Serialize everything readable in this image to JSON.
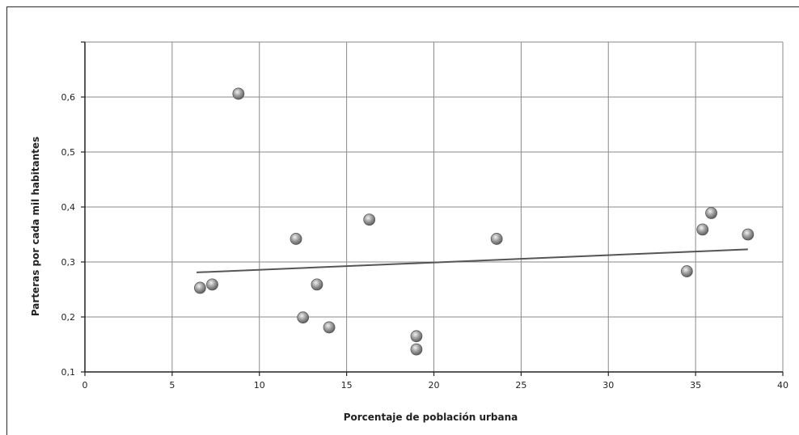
{
  "chart_data": {
    "type": "scatter",
    "xlabel": "Porcentaje de población urbana",
    "ylabel": "Parteras por cada mil habitantes",
    "xlim": [
      0,
      40
    ],
    "ylim": [
      0.1,
      0.7
    ],
    "x_ticks": [
      0,
      5,
      10,
      15,
      20,
      25,
      30,
      35,
      40
    ],
    "x_tick_labels": [
      "0",
      "5",
      "10",
      "15",
      "20",
      "25",
      "30",
      "35",
      "40"
    ],
    "y_tick_labels": [
      {
        "value": 0.1,
        "label": "0,1"
      },
      {
        "value": 0.2,
        "label": "0,2"
      },
      {
        "value": 0.3,
        "label": "0,3"
      },
      {
        "value": 0.4,
        "label": "0,4"
      },
      {
        "value": 0.5,
        "label": "0,5"
      },
      {
        "value": 0.6,
        "label": "0,6"
      }
    ],
    "y_gridlines": [
      0.1,
      0.2,
      0.3,
      0.4,
      0.5,
      0.6,
      0.7
    ],
    "x_gridlines": [
      0,
      5,
      10,
      15,
      20,
      25,
      30,
      35,
      40
    ],
    "grid": true,
    "points": [
      {
        "x": 6.6,
        "y": 0.253
      },
      {
        "x": 7.3,
        "y": 0.259
      },
      {
        "x": 8.8,
        "y": 0.606
      },
      {
        "x": 12.1,
        "y": 0.342
      },
      {
        "x": 12.5,
        "y": 0.199
      },
      {
        "x": 13.3,
        "y": 0.259
      },
      {
        "x": 14.0,
        "y": 0.181
      },
      {
        "x": 16.3,
        "y": 0.377
      },
      {
        "x": 19.0,
        "y": 0.165
      },
      {
        "x": 19.0,
        "y": 0.141
      },
      {
        "x": 23.6,
        "y": 0.342
      },
      {
        "x": 34.5,
        "y": 0.283
      },
      {
        "x": 35.4,
        "y": 0.359
      },
      {
        "x": 35.9,
        "y": 0.389
      },
      {
        "x": 38.0,
        "y": 0.35
      }
    ],
    "trendline": {
      "x": [
        6.4,
        38.0
      ],
      "y": [
        0.281,
        0.323
      ]
    },
    "colors": {
      "grid": "#8a8a8a",
      "axis": "#222222",
      "trend": "#555555",
      "point_fill": "#9a9a9a",
      "point_highlight": "#f0f0f0",
      "point_edge": "#5a5a5a"
    }
  }
}
